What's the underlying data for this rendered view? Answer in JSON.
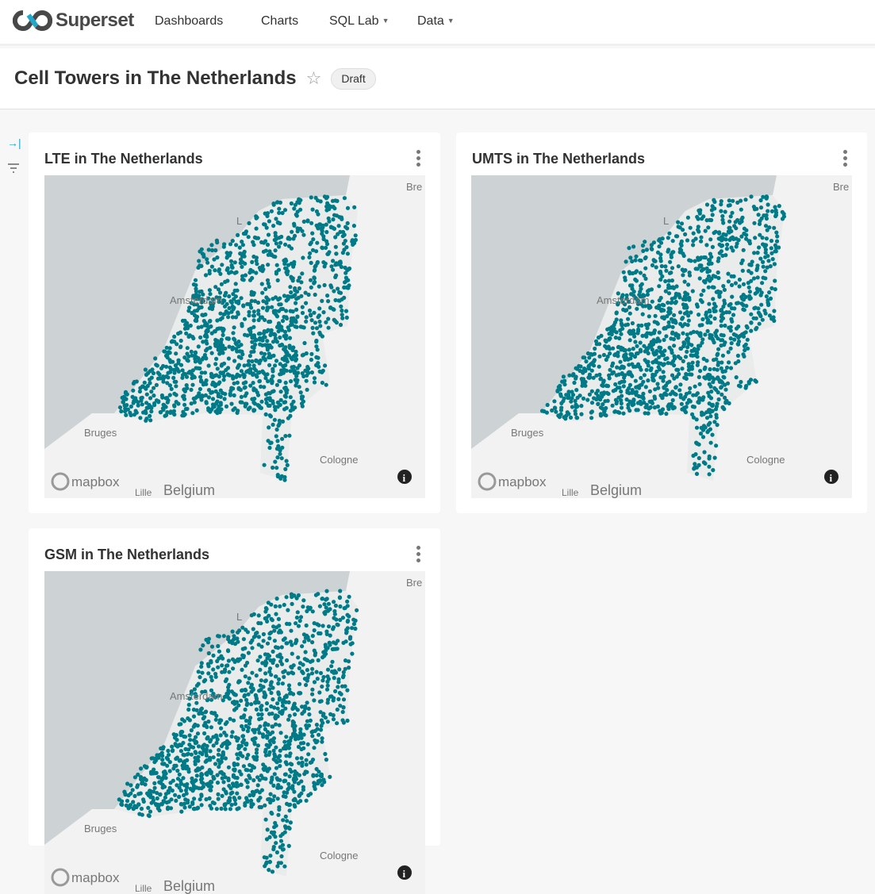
{
  "nav": {
    "brand": "Superset",
    "items": [
      {
        "label": "Dashboards"
      },
      {
        "label": "Charts"
      },
      {
        "label": "SQL Lab",
        "dropdown": true
      },
      {
        "label": "Data",
        "dropdown": true
      }
    ]
  },
  "header": {
    "title": "Cell Towers in The Netherlands",
    "badge": "Draft",
    "star_icon": "star-outline-icon"
  },
  "sidebar": {
    "expand_icon": "expand-filters-icon",
    "filter_icon": "filter-icon"
  },
  "colors": {
    "points": "#007a87",
    "sea": "#cdd3d5",
    "land": "#f2f2f2",
    "accent": "#20a7c9"
  },
  "charts": [
    {
      "title": "LTE in The Netherlands"
    },
    {
      "title": "UMTS in The Netherlands"
    },
    {
      "title": "GSM in The Netherlands"
    }
  ],
  "map_labels": {
    "bremen": "Bre",
    "leeuwarden": "L",
    "amsterdam": "Amsterdam",
    "bruges": "Bruges",
    "cologne": "Cologne",
    "belgium": "Belgium",
    "lille": "Lille",
    "attribution": "mapbox"
  }
}
